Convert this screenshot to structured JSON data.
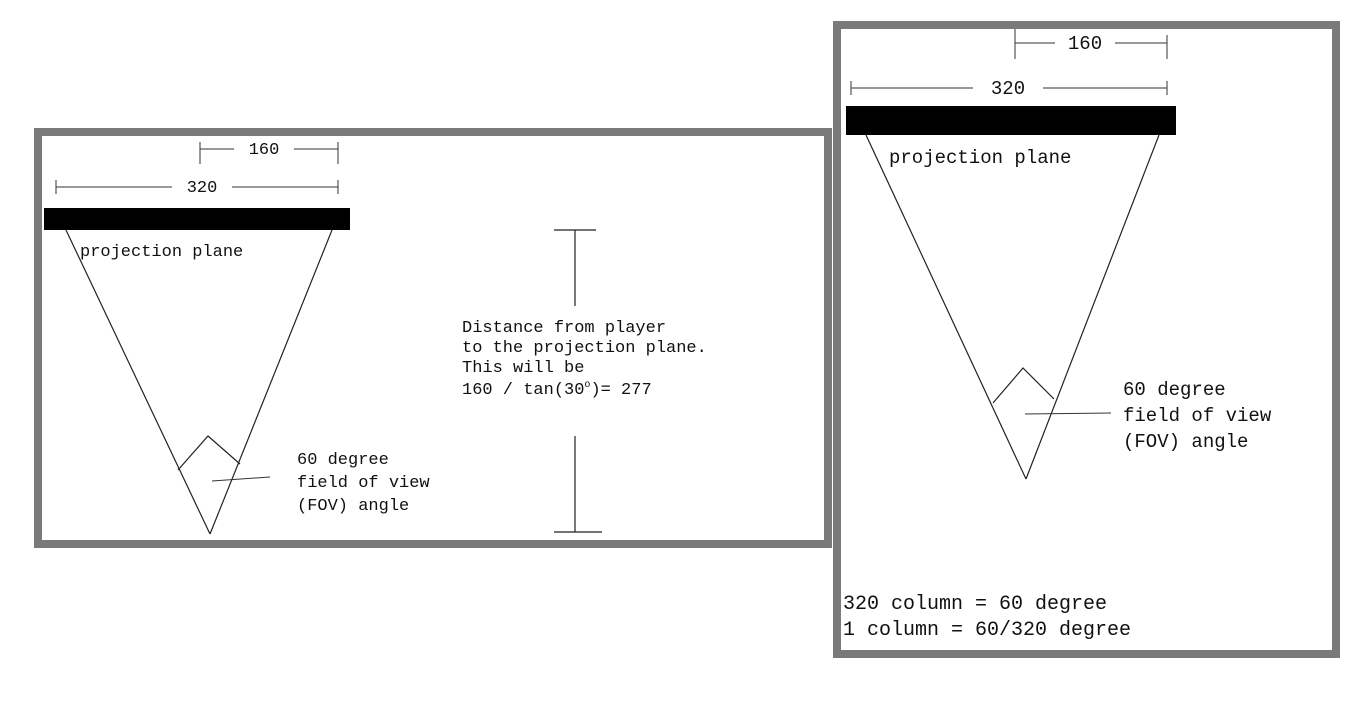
{
  "left": {
    "dim_half": "160",
    "dim_full": "320",
    "plane_label": "projection plane",
    "distance_lines": [
      "Distance from player",
      "to the projection plane.",
      "This will be",
      "160 / tan(30",
      "o",
      ")= 277"
    ],
    "fov_lines": [
      "60 degree",
      "field of view",
      "(FOV) angle"
    ]
  },
  "right": {
    "dim_half": "160",
    "dim_full": "320",
    "plane_label": "projection plane",
    "fov_lines": [
      "60 degree",
      "field of view",
      "(FOV) angle"
    ],
    "footer_lines": [
      "320 column = 60 degree",
      "1 column = 60/320 degree"
    ]
  },
  "colors": {
    "frame": "#7a7a7a",
    "plane_bar": "#000000",
    "ink": "#111111"
  }
}
